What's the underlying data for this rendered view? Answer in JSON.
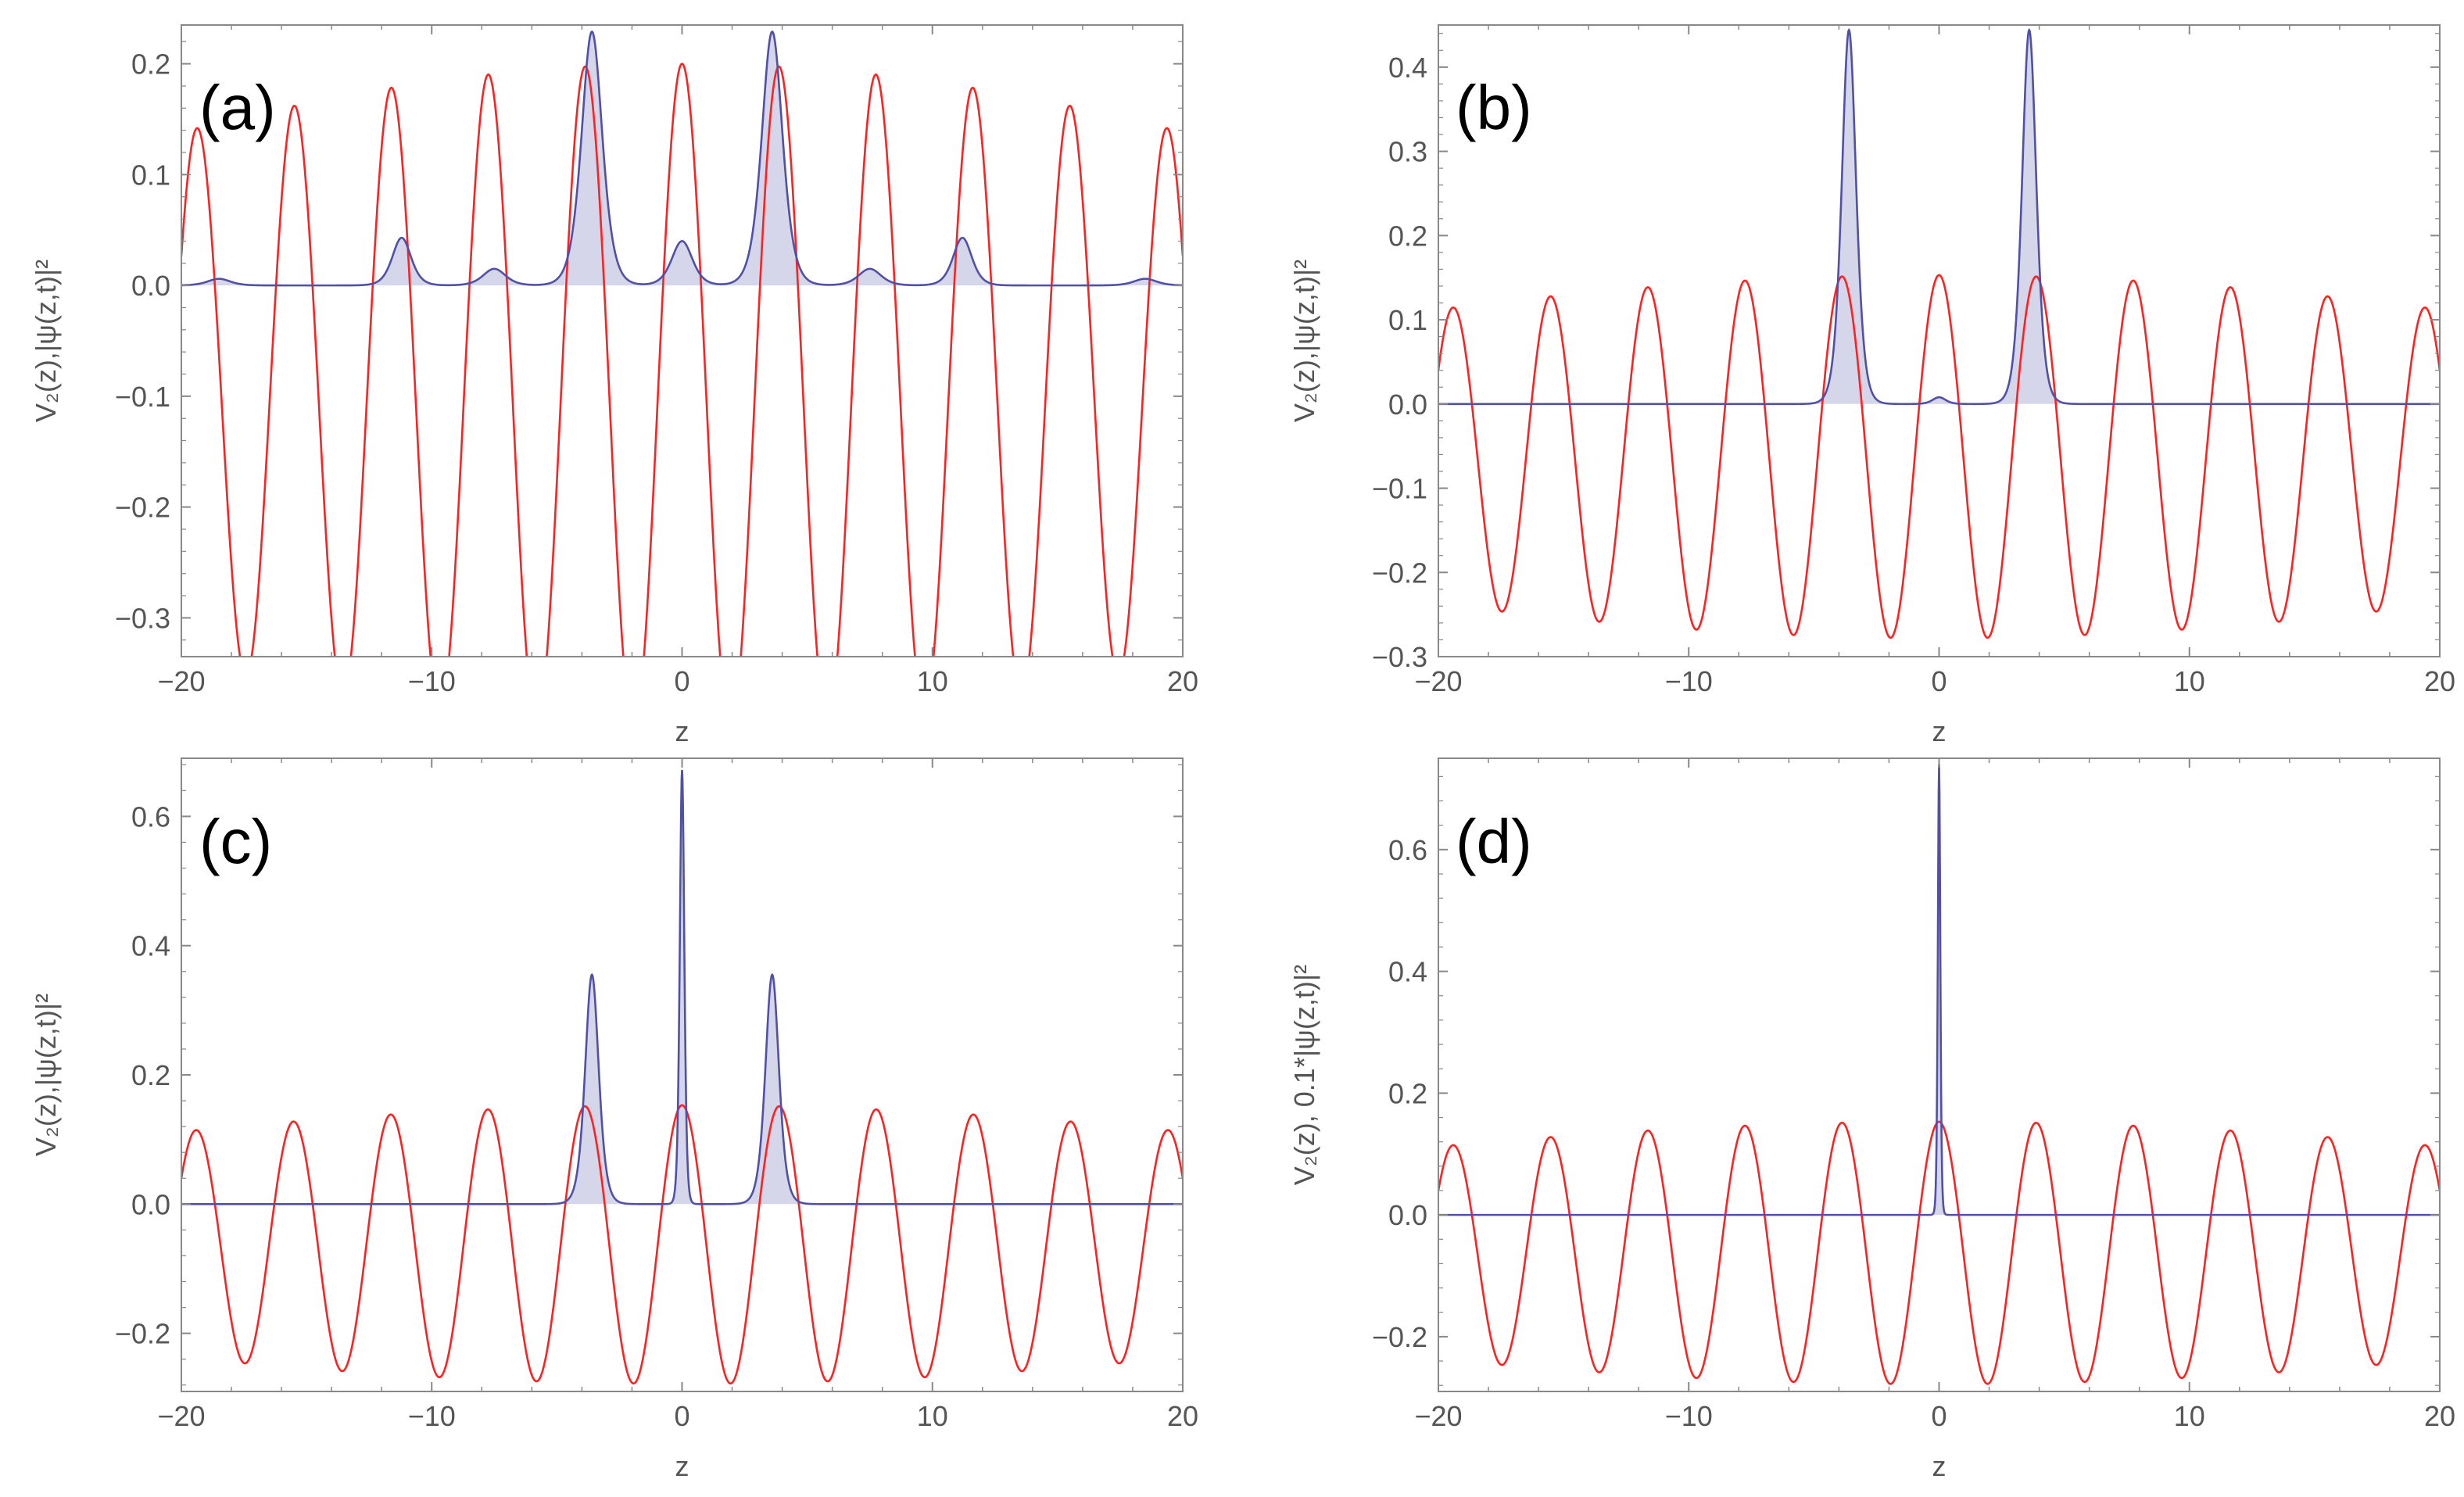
{
  "figure": {
    "panel_order": [
      "a",
      "b",
      "c",
      "d"
    ]
  },
  "colors": {
    "potential": "#ff2020",
    "density": "#5050a8",
    "density_fill": "#d6d6ea",
    "frame": "#888888"
  },
  "chart_data": [
    {
      "id": "a",
      "type": "line",
      "panel_label": "(a)",
      "xlabel": "z",
      "ylabel": "V₂(z),|ψ(z,t)|²",
      "xlim": [
        -20,
        20
      ],
      "ylim": [
        -0.335,
        0.235
      ],
      "xticks": [
        -20,
        -10,
        0,
        10,
        20
      ],
      "xtick_labels": [
        "−20",
        "−10",
        "0",
        "10",
        "20"
      ],
      "yticks": [
        -0.3,
        -0.2,
        -0.1,
        0.0,
        0.1,
        0.2
      ],
      "ytick_labels": [
        "−0.3",
        "−0.2",
        "−0.1",
        "0.0",
        "0.1",
        "0.2"
      ],
      "series": [
        {
          "name": "V₂(z)",
          "color": "#ff2020",
          "function": "V2",
          "params": {
            "A": 0.2,
            "B": 0.2,
            "k1": 1.6,
            "k2": 0.835
          }
        },
        {
          "name": "|ψ(z,t)|²",
          "color": "#5050a8",
          "filled": true,
          "peaks": [
            {
              "center": -3.6,
              "amplitude": 0.229,
              "width": 0.55
            },
            {
              "center": 3.6,
              "amplitude": 0.229,
              "width": 0.55
            },
            {
              "center": 0.0,
              "amplitude": 0.04,
              "width": 0.55
            },
            {
              "center": -11.2,
              "amplitude": 0.043,
              "width": 0.5
            },
            {
              "center": 11.2,
              "amplitude": 0.043,
              "width": 0.5
            },
            {
              "center": -7.5,
              "amplitude": 0.015,
              "width": 0.6
            },
            {
              "center": 7.5,
              "amplitude": 0.015,
              "width": 0.6
            },
            {
              "center": -18.5,
              "amplitude": 0.006,
              "width": 0.6
            },
            {
              "center": 18.5,
              "amplitude": 0.006,
              "width": 0.6
            }
          ]
        }
      ]
    },
    {
      "id": "b",
      "type": "line",
      "panel_label": "(b)",
      "xlabel": "z",
      "ylabel": "V₂(z),|ψ(z,t)|²",
      "xlim": [
        -20,
        20
      ],
      "ylim": [
        -0.3,
        0.45
      ],
      "xticks": [
        -20,
        -10,
        0,
        10,
        20
      ],
      "xtick_labels": [
        "−20",
        "−10",
        "0",
        "10",
        "20"
      ],
      "yticks": [
        -0.3,
        -0.2,
        -0.1,
        0.0,
        0.1,
        0.2,
        0.3,
        0.4
      ],
      "ytick_labels": [
        "−0.3",
        "−0.2",
        "−0.1",
        "0.0",
        "0.1",
        "0.2",
        "0.3",
        "0.4"
      ],
      "series": [
        {
          "name": "V₂(z)",
          "color": "#ff2020",
          "function": "V2",
          "params": {
            "A": 0.153,
            "B": 0.125,
            "k1": 1.6,
            "k2": 0.835
          }
        },
        {
          "name": "|ψ(z,t)|²",
          "color": "#5050a8",
          "filled": true,
          "peaks": [
            {
              "center": -3.6,
              "amplitude": 0.444,
              "width": 0.38
            },
            {
              "center": 3.6,
              "amplitude": 0.444,
              "width": 0.38
            },
            {
              "center": 0.0,
              "amplitude": 0.008,
              "width": 0.35
            }
          ]
        }
      ]
    },
    {
      "id": "c",
      "type": "line",
      "panel_label": "(c)",
      "xlabel": "z",
      "ylabel": "V₂(z),|ψ(z,t)|²",
      "xlim": [
        -20,
        20
      ],
      "ylim": [
        -0.29,
        0.69
      ],
      "xticks": [
        -20,
        -10,
        0,
        10,
        20
      ],
      "xtick_labels": [
        "−20",
        "−10",
        "0",
        "10",
        "20"
      ],
      "yticks": [
        -0.2,
        0.0,
        0.2,
        0.4,
        0.6
      ],
      "ytick_labels": [
        "−0.2",
        "0.0",
        "0.2",
        "0.4",
        "0.6"
      ],
      "series": [
        {
          "name": "V₂(z)",
          "color": "#ff2020",
          "function": "V2",
          "params": {
            "A": 0.153,
            "B": 0.125,
            "k1": 1.6,
            "k2": 0.835
          }
        },
        {
          "name": "|ψ(z,t)|²",
          "color": "#5050a8",
          "filled": true,
          "peaks": [
            {
              "center": -3.6,
              "amplitude": 0.355,
              "width": 0.36
            },
            {
              "center": 3.6,
              "amplitude": 0.355,
              "width": 0.36
            },
            {
              "center": 0.0,
              "amplitude": 0.672,
              "width": 0.12
            }
          ]
        }
      ]
    },
    {
      "id": "d",
      "type": "line",
      "panel_label": "(d)",
      "xlabel": "z",
      "ylabel": "V₂(z), 0.1*|ψ(z,t)|²",
      "xlim": [
        -20,
        20
      ],
      "ylim": [
        -0.29,
        0.75
      ],
      "xticks": [
        -20,
        -10,
        0,
        10,
        20
      ],
      "xtick_labels": [
        "−20",
        "−10",
        "0",
        "10",
        "20"
      ],
      "yticks": [
        -0.2,
        0.0,
        0.2,
        0.4,
        0.6
      ],
      "ytick_labels": [
        "−0.2",
        "0.0",
        "0.2",
        "0.4",
        "0.6"
      ],
      "series": [
        {
          "name": "V₂(z)",
          "color": "#ff2020",
          "function": "V2",
          "params": {
            "A": 0.153,
            "B": 0.125,
            "k1": 1.6,
            "k2": 0.835
          }
        },
        {
          "name": "0.1*|ψ(z,t)|²",
          "color": "#5050a8",
          "filled": true,
          "peaks": [
            {
              "center": 0.0,
              "amplitude": 0.74,
              "width": 0.065
            }
          ]
        }
      ]
    }
  ]
}
